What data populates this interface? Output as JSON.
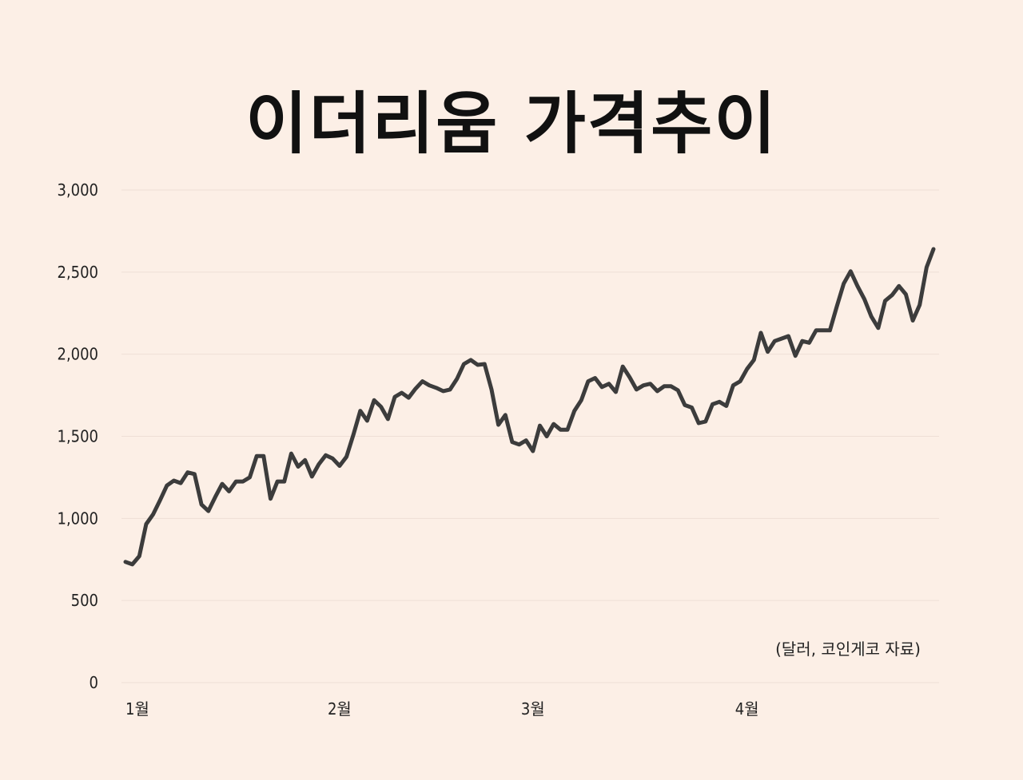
{
  "chart_data": {
    "type": "line",
    "title": "이더리움 가격추이",
    "annotation": "(달러, 코인게코 자료)",
    "ylim": [
      0,
      3000
    ],
    "y_ticks": [
      0,
      500,
      1000,
      1500,
      2000,
      2500,
      3000
    ],
    "y_tick_labels": [
      "0",
      "500",
      "1,000",
      "1,500",
      "2,000",
      "2,500",
      "3,000"
    ],
    "x_ticks": [
      0,
      31,
      59,
      90
    ],
    "x_tick_labels": [
      "1월",
      "2월",
      "3월",
      "4월"
    ],
    "grid": "horizontal",
    "line_color": "#3c3c3c",
    "series": [
      {
        "x": [
          0,
          1,
          2,
          3,
          4,
          5,
          6,
          7,
          8,
          9,
          10,
          11,
          12,
          13,
          14,
          15,
          16,
          17,
          18,
          19,
          20,
          21,
          22,
          23,
          24,
          25,
          26,
          27,
          28,
          29,
          30,
          31,
          32,
          33,
          34,
          35,
          36,
          37,
          38,
          39,
          40,
          41,
          42,
          43,
          44,
          45,
          46,
          47,
          48,
          49,
          50,
          51,
          52,
          53,
          54,
          55,
          56,
          57,
          58,
          59,
          60,
          61,
          62,
          63,
          64,
          65,
          66,
          67,
          68,
          69,
          70,
          71,
          72,
          73,
          74,
          75,
          76,
          77,
          78,
          79,
          80,
          81,
          82,
          83,
          84,
          85,
          86,
          87,
          88,
          89,
          90,
          91,
          92,
          93,
          94,
          95,
          96,
          97,
          98,
          99,
          100,
          101,
          102,
          103,
          104,
          105,
          106,
          107,
          108,
          109,
          110,
          111,
          112,
          113,
          114,
          115,
          116,
          117
        ],
        "values": [
          735,
          720,
          770,
          965,
          1025,
          1110,
          1200,
          1230,
          1215,
          1280,
          1270,
          1085,
          1045,
          1130,
          1210,
          1165,
          1225,
          1225,
          1250,
          1380,
          1380,
          1120,
          1225,
          1225,
          1395,
          1315,
          1355,
          1255,
          1330,
          1385,
          1365,
          1320,
          1375,
          1510,
          1655,
          1595,
          1720,
          1680,
          1605,
          1740,
          1765,
          1735,
          1790,
          1835,
          1810,
          1795,
          1775,
          1785,
          1850,
          1940,
          1965,
          1935,
          1940,
          1785,
          1570,
          1630,
          1465,
          1450,
          1475,
          1410,
          1565,
          1500,
          1575,
          1540,
          1540,
          1655,
          1720,
          1835,
          1855,
          1800,
          1820,
          1770,
          1925,
          1860,
          1785,
          1810,
          1820,
          1775,
          1805,
          1805,
          1780,
          1690,
          1675,
          1580,
          1590,
          1695,
          1710,
          1685,
          1810,
          1835,
          1910,
          1965,
          2130,
          2015,
          2080,
          2095,
          2110,
          1990,
          2080,
          2070,
          2145,
          2145,
          2145,
          2290,
          2430,
          2505,
          2415,
          2335,
          2230,
          2160,
          2325,
          2360,
          2415,
          2365,
          2205,
          2300,
          2530,
          2640
        ]
      }
    ]
  }
}
